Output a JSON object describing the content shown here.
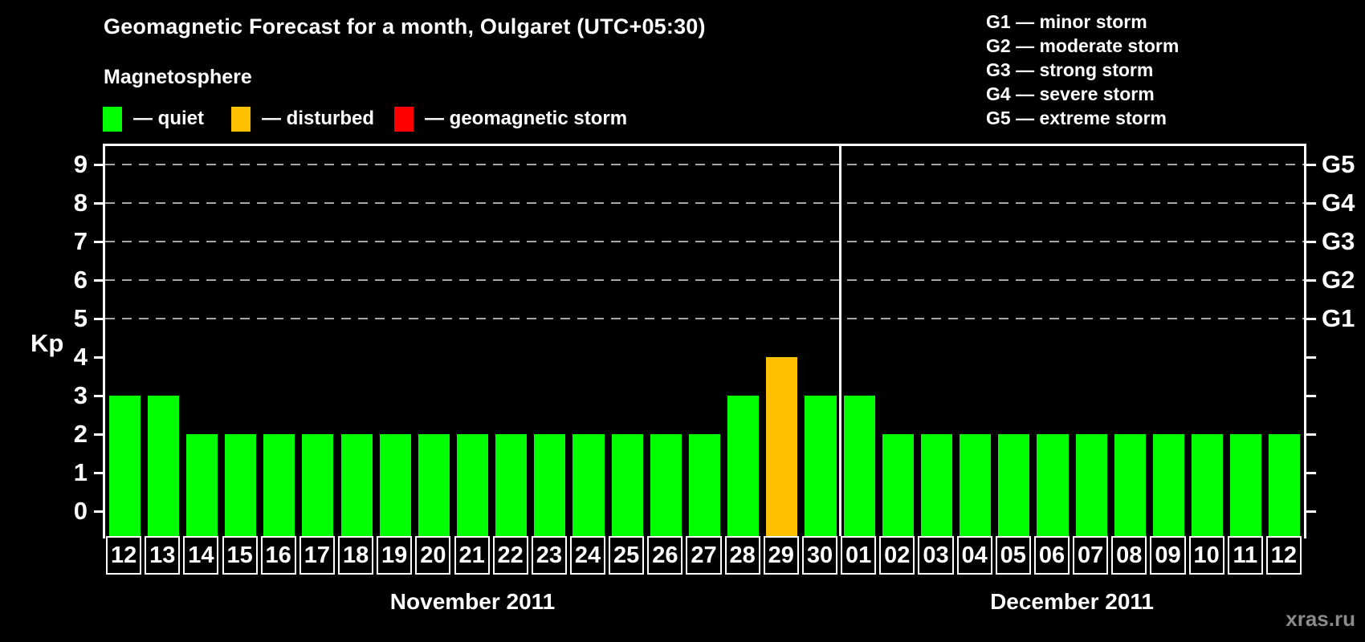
{
  "page": {
    "background": "#000000",
    "text_color": "#ffffff"
  },
  "header": {
    "title": "Geomagnetic Forecast for a month, Oulgaret (UTC+05:30)",
    "subtitle": "Magnetosphere"
  },
  "legend": {
    "items": [
      {
        "label": "— quiet",
        "state": "quiet",
        "color": "#00ff00"
      },
      {
        "label": "— disturbed",
        "state": "disturbed",
        "color": "#ffc000"
      },
      {
        "label": "— geomagnetic storm",
        "state": "storm",
        "color": "#ff0000"
      }
    ]
  },
  "storm_scale": {
    "items": [
      {
        "text": "G1 — minor storm"
      },
      {
        "text": "G2 — moderate storm"
      },
      {
        "text": "G3 — strong storm"
      },
      {
        "text": "G4 — severe storm"
      },
      {
        "text": "G5 — extreme storm"
      }
    ]
  },
  "watermark": "xras.ru",
  "chart_data": {
    "type": "bar",
    "title": "Geomagnetic Forecast for a month, Oulgaret (UTC+05:30)",
    "ylabel": "Kp",
    "ylim": [
      0,
      9.75
    ],
    "yticks": [
      0,
      1,
      2,
      3,
      4,
      5,
      6,
      7,
      8,
      9
    ],
    "gridlines_kp": [
      5,
      6,
      7,
      8,
      9
    ],
    "grid": "dashed horizontal lines only at G-storm levels (Kp 5-9)",
    "legend_position": "top-left",
    "right_axis": [
      {
        "kp": 5,
        "label": "G1"
      },
      {
        "kp": 6,
        "label": "G2"
      },
      {
        "kp": 7,
        "label": "G3"
      },
      {
        "kp": 8,
        "label": "G4"
      },
      {
        "kp": 9,
        "label": "G5"
      }
    ],
    "color_map": {
      "quiet": "#00ff00",
      "disturbed": "#ffc000",
      "storm": "#ff0000"
    },
    "groups": [
      {
        "month": "November 2011",
        "days": [
          {
            "date": "12",
            "kp": 3,
            "state": "quiet"
          },
          {
            "date": "13",
            "kp": 3,
            "state": "quiet"
          },
          {
            "date": "14",
            "kp": 2,
            "state": "quiet"
          },
          {
            "date": "15",
            "kp": 2,
            "state": "quiet"
          },
          {
            "date": "16",
            "kp": 2,
            "state": "quiet"
          },
          {
            "date": "17",
            "kp": 2,
            "state": "quiet"
          },
          {
            "date": "18",
            "kp": 2,
            "state": "quiet"
          },
          {
            "date": "19",
            "kp": 2,
            "state": "quiet"
          },
          {
            "date": "20",
            "kp": 2,
            "state": "quiet"
          },
          {
            "date": "21",
            "kp": 2,
            "state": "quiet"
          },
          {
            "date": "22",
            "kp": 2,
            "state": "quiet"
          },
          {
            "date": "23",
            "kp": 2,
            "state": "quiet"
          },
          {
            "date": "24",
            "kp": 2,
            "state": "quiet"
          },
          {
            "date": "25",
            "kp": 2,
            "state": "quiet"
          },
          {
            "date": "26",
            "kp": 2,
            "state": "quiet"
          },
          {
            "date": "27",
            "kp": 2,
            "state": "quiet"
          },
          {
            "date": "28",
            "kp": 3,
            "state": "quiet"
          },
          {
            "date": "29",
            "kp": 4,
            "state": "disturbed"
          },
          {
            "date": "30",
            "kp": 3,
            "state": "quiet"
          }
        ]
      },
      {
        "month": "December 2011",
        "days": [
          {
            "date": "01",
            "kp": 3,
            "state": "quiet"
          },
          {
            "date": "02",
            "kp": 2,
            "state": "quiet"
          },
          {
            "date": "03",
            "kp": 2,
            "state": "quiet"
          },
          {
            "date": "04",
            "kp": 2,
            "state": "quiet"
          },
          {
            "date": "05",
            "kp": 2,
            "state": "quiet"
          },
          {
            "date": "06",
            "kp": 2,
            "state": "quiet"
          },
          {
            "date": "07",
            "kp": 2,
            "state": "quiet"
          },
          {
            "date": "08",
            "kp": 2,
            "state": "quiet"
          },
          {
            "date": "09",
            "kp": 2,
            "state": "quiet"
          },
          {
            "date": "10",
            "kp": 2,
            "state": "quiet"
          },
          {
            "date": "11",
            "kp": 2,
            "state": "quiet"
          },
          {
            "date": "12",
            "kp": 2,
            "state": "quiet"
          }
        ]
      }
    ]
  }
}
